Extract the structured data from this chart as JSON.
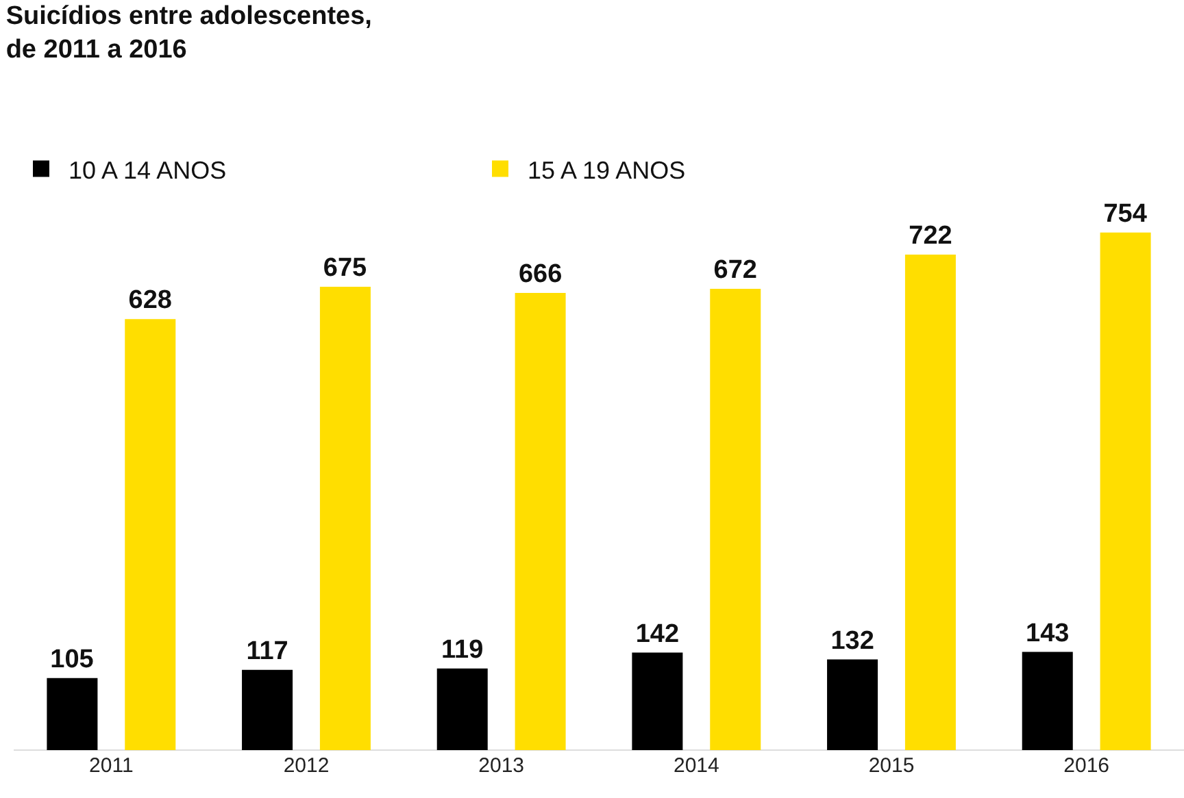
{
  "chart_data": {
    "type": "bar",
    "title": "Suicídios entre adolescentes,\nde 2011 a 2016",
    "categories": [
      "2011",
      "2012",
      "2013",
      "2014",
      "2015",
      "2016"
    ],
    "series": [
      {
        "name": "10 A 14 ANOS",
        "color": "#000000",
        "values": [
          105,
          117,
          119,
          142,
          132,
          143
        ]
      },
      {
        "name": "15 A 19 ANOS",
        "color": "#ffde00",
        "values": [
          628,
          675,
          666,
          672,
          722,
          754
        ]
      }
    ],
    "data_labels": true,
    "grid": false,
    "legend": "top left"
  }
}
